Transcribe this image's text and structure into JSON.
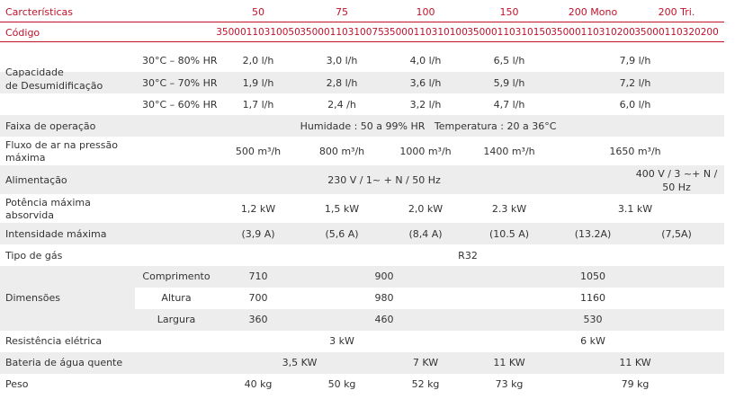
{
  "header": {
    "label": "Carcterísticas",
    "models": [
      "50",
      "75",
      "100",
      "150",
      "200 Mono",
      "200 Tri."
    ]
  },
  "codigo": {
    "label": "Código",
    "values": [
      "35000110310050",
      "35000110310075",
      "35000110310100",
      "35000110310150",
      "35000110310200",
      "35000110320200"
    ]
  },
  "capacidade": {
    "label_line1": "Capacidade",
    "label_line2": "de Desumidificação",
    "rows": [
      {
        "condition": "30°C – 80% HR",
        "values": [
          "2,0 l/h",
          "3,0 l/h",
          "4,0 l/h",
          "6,5 l/h",
          "7,9 l/h"
        ]
      },
      {
        "condition": "30°C – 70% HR",
        "values": [
          "1,9 l/h",
          "2,8 l/h",
          "3,6 l/h",
          "5,9 l/h",
          "7,2 l/h"
        ]
      },
      {
        "condition": "30°C – 60% HR",
        "values": [
          "1,7 l/h",
          "2,4 /h",
          "3,2 l/h",
          "4,7 l/h",
          "6,0 l/h"
        ]
      }
    ]
  },
  "faixa": {
    "label": "Faixa de operação",
    "value": "Humidade : 50 a 99% HR   Temperatura : 20 a 36°C"
  },
  "fluxo": {
    "label_line1": "Fluxo de ar na pressão",
    "label_line2": "máxima",
    "values": [
      "500 m³/h",
      "800 m³/h",
      "1000 m³/h",
      "1400 m³/h",
      "1650 m³/h"
    ]
  },
  "alimentacao": {
    "label": "Alimentação",
    "mono": "230 V / 1~ + N / 50 Hz",
    "tri_line1": "400 V / 3 ~+ N /",
    "tri_line2": "50 Hz"
  },
  "potencia": {
    "label_line1": "Potência máxima",
    "label_line2": "absorvida",
    "values": [
      "1,2 kW",
      "1,5 kW",
      "2,0 kW",
      "2.3 kW",
      "3.1 kW"
    ]
  },
  "intensidade": {
    "label": "Intensidade máxima",
    "values": [
      "(3,9 A)",
      "(5,6 A)",
      "(8,4 A)",
      "(10.5 A)",
      "(13.2A)",
      "(7,5A)"
    ]
  },
  "gas": {
    "label": "Tipo de gás",
    "value": "R32"
  },
  "dimensoes": {
    "label": "Dimensões",
    "rows": [
      {
        "name": "Comprimento",
        "values": [
          "710",
          "900",
          "1050"
        ]
      },
      {
        "name": "Altura",
        "values": [
          "700",
          "980",
          "1160"
        ]
      },
      {
        "name": "Largura",
        "values": [
          "360",
          "460",
          "530"
        ]
      }
    ]
  },
  "resistencia": {
    "label": "Resistência elétrica",
    "values": [
      "3 kW",
      "6 kW"
    ]
  },
  "bateria": {
    "label": "Bateria de água quente",
    "values": [
      "3,5 KW",
      "7 KW",
      "11 KW",
      "11 KW"
    ]
  },
  "peso": {
    "label": "Peso",
    "values": [
      "40 kg",
      "50 kg",
      "52 kg",
      "73 kg",
      "79 kg"
    ]
  },
  "colors": {
    "accent": "#c0122a",
    "band": "#ededed",
    "text": "#333333"
  }
}
